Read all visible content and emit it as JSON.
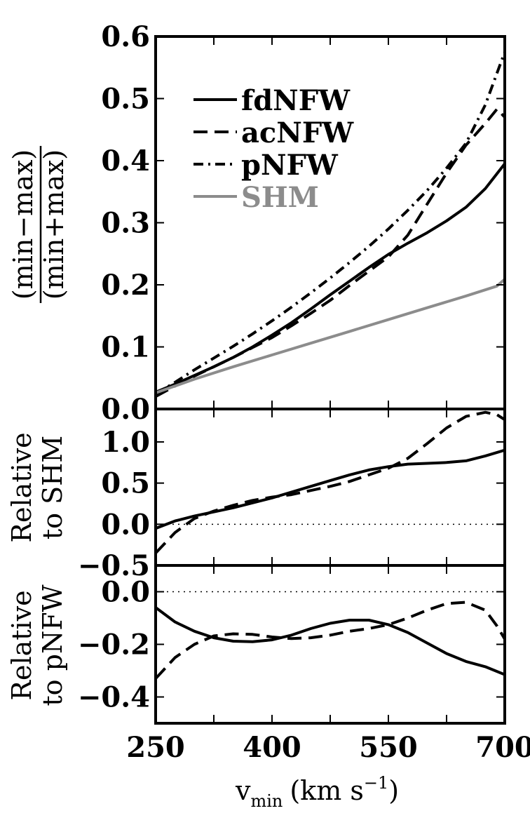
{
  "chart_data": [
    {
      "type": "line",
      "panel": "top",
      "ylabel": "(min−max)/(min+max)",
      "ylim": [
        0.0,
        0.6
      ],
      "xlim": [
        250,
        700
      ],
      "yticks": [
        {
          "value": 0.0,
          "label": "0.0"
        },
        {
          "value": 0.1,
          "label": "0.1"
        },
        {
          "value": 0.2,
          "label": "0.2"
        },
        {
          "value": 0.3,
          "label": "0.3"
        },
        {
          "value": 0.4,
          "label": "0.4"
        },
        {
          "value": 0.5,
          "label": "0.5"
        },
        {
          "value": 0.6,
          "label": "0.6"
        }
      ],
      "legend": {
        "placement": "top-left",
        "entries": [
          {
            "name": "fdNFW",
            "style": "solid",
            "color": "#000000"
          },
          {
            "name": "acNFW",
            "style": "dashed",
            "color": "#000000"
          },
          {
            "name": "pNFW",
            "style": "dashdot",
            "color": "#000000"
          },
          {
            "name": "SHM",
            "style": "solid",
            "color": "#8c8c8c"
          }
        ]
      },
      "series": [
        {
          "name": "fdNFW",
          "x": [
            250,
            275,
            300,
            325,
            350,
            375,
            400,
            425,
            450,
            475,
            500,
            525,
            550,
            575,
            600,
            625,
            650,
            675,
            700
          ],
          "y": [
            0.027,
            0.04,
            0.054,
            0.068,
            0.083,
            0.1,
            0.119,
            0.139,
            0.161,
            0.184,
            0.206,
            0.228,
            0.249,
            0.267,
            0.284,
            0.303,
            0.325,
            0.355,
            0.395
          ]
        },
        {
          "name": "acNFW",
          "x": [
            250,
            275,
            300,
            325,
            350,
            375,
            400,
            425,
            450,
            475,
            500,
            525,
            550,
            575,
            600,
            625,
            650,
            675,
            690,
            700
          ],
          "y": [
            0.02,
            0.037,
            0.053,
            0.068,
            0.083,
            0.099,
            0.115,
            0.134,
            0.154,
            0.175,
            0.199,
            0.222,
            0.245,
            0.28,
            0.33,
            0.38,
            0.425,
            0.46,
            0.483,
            0.47
          ]
        },
        {
          "name": "pNFW",
          "x": [
            250,
            275,
            300,
            325,
            350,
            375,
            400,
            425,
            450,
            475,
            500,
            525,
            550,
            575,
            600,
            625,
            650,
            675,
            700
          ],
          "y": [
            0.024,
            0.043,
            0.063,
            0.082,
            0.101,
            0.121,
            0.142,
            0.164,
            0.187,
            0.211,
            0.236,
            0.262,
            0.29,
            0.32,
            0.352,
            0.388,
            0.428,
            0.49,
            0.575
          ]
        },
        {
          "name": "SHM",
          "x": [
            250,
            300,
            350,
            400,
            450,
            500,
            550,
            600,
            650,
            690,
            700
          ],
          "y": [
            0.026,
            0.048,
            0.068,
            0.087,
            0.106,
            0.125,
            0.144,
            0.163,
            0.182,
            0.198,
            0.209
          ]
        }
      ]
    },
    {
      "type": "line",
      "panel": "middle",
      "ylabel": "Relative to SHM",
      "ylim": [
        -0.5,
        1.4
      ],
      "xlim": [
        250,
        700
      ],
      "reference_line": {
        "y": 0.0,
        "style": "dotted"
      },
      "yticks": [
        {
          "value": -0.5,
          "label": "−0.5"
        },
        {
          "value": 0.0,
          "label": "0.0"
        },
        {
          "value": 0.5,
          "label": "0.5"
        },
        {
          "value": 1.0,
          "label": "1.0"
        }
      ],
      "series": [
        {
          "name": "fdNFW",
          "x": [
            250,
            275,
            300,
            325,
            350,
            375,
            400,
            425,
            450,
            475,
            500,
            525,
            550,
            575,
            600,
            625,
            650,
            675,
            700
          ],
          "y": [
            -0.05,
            0.04,
            0.1,
            0.15,
            0.2,
            0.26,
            0.32,
            0.39,
            0.46,
            0.53,
            0.6,
            0.66,
            0.7,
            0.73,
            0.74,
            0.75,
            0.77,
            0.83,
            0.9
          ]
        },
        {
          "name": "acNFW",
          "x": [
            250,
            275,
            300,
            325,
            350,
            375,
            400,
            425,
            450,
            475,
            500,
            525,
            550,
            575,
            600,
            625,
            650,
            675,
            690,
            700
          ],
          "y": [
            -0.35,
            -0.1,
            0.07,
            0.16,
            0.23,
            0.29,
            0.33,
            0.36,
            0.41,
            0.46,
            0.52,
            0.6,
            0.68,
            0.8,
            0.98,
            1.17,
            1.31,
            1.36,
            1.33,
            1.27
          ]
        }
      ]
    },
    {
      "type": "line",
      "panel": "bottom",
      "ylabel": "Relative to pNFW",
      "ylim": [
        -0.5,
        0.1
      ],
      "xlim": [
        250,
        700
      ],
      "xlabel": "v_min (km s^-1)",
      "reference_line": {
        "y": 0.0,
        "style": "dotted"
      },
      "xticks": [
        {
          "value": 250,
          "label": "250"
        },
        {
          "value": 400,
          "label": "400"
        },
        {
          "value": 550,
          "label": "550"
        },
        {
          "value": 700,
          "label": "700"
        }
      ],
      "yticks": [
        {
          "value": -0.4,
          "label": "−0.4"
        },
        {
          "value": -0.2,
          "label": "−0.2"
        },
        {
          "value": 0.0,
          "label": "0.0"
        }
      ],
      "series": [
        {
          "name": "fdNFW",
          "x": [
            250,
            275,
            300,
            325,
            350,
            375,
            400,
            425,
            450,
            475,
            500,
            525,
            550,
            575,
            600,
            625,
            650,
            675,
            700
          ],
          "y": [
            -0.06,
            -0.115,
            -0.15,
            -0.175,
            -0.188,
            -0.19,
            -0.183,
            -0.165,
            -0.14,
            -0.12,
            -0.108,
            -0.108,
            -0.125,
            -0.155,
            -0.195,
            -0.235,
            -0.265,
            -0.285,
            -0.315
          ]
        },
        {
          "name": "acNFW",
          "x": [
            250,
            275,
            300,
            325,
            350,
            375,
            400,
            425,
            450,
            475,
            500,
            525,
            550,
            575,
            600,
            625,
            650,
            675,
            690,
            700
          ],
          "y": [
            -0.33,
            -0.25,
            -0.2,
            -0.168,
            -0.16,
            -0.162,
            -0.172,
            -0.178,
            -0.175,
            -0.165,
            -0.15,
            -0.14,
            -0.125,
            -0.1,
            -0.07,
            -0.045,
            -0.04,
            -0.07,
            -0.13,
            -0.18
          ]
        }
      ]
    }
  ],
  "text": {
    "xlabel_v": "v",
    "xlabel_sub": "min",
    "xlabel_unit": "(km s",
    "xlabel_exp": "−1",
    "xlabel_close": ")",
    "top_ylabel_num": "(min−max)",
    "top_ylabel_den": "(min+max)",
    "mid_ylabel_1": "Relative",
    "mid_ylabel_2": "to SHM",
    "bot_ylabel_1": "Relative",
    "bot_ylabel_2": "to pNFW"
  }
}
